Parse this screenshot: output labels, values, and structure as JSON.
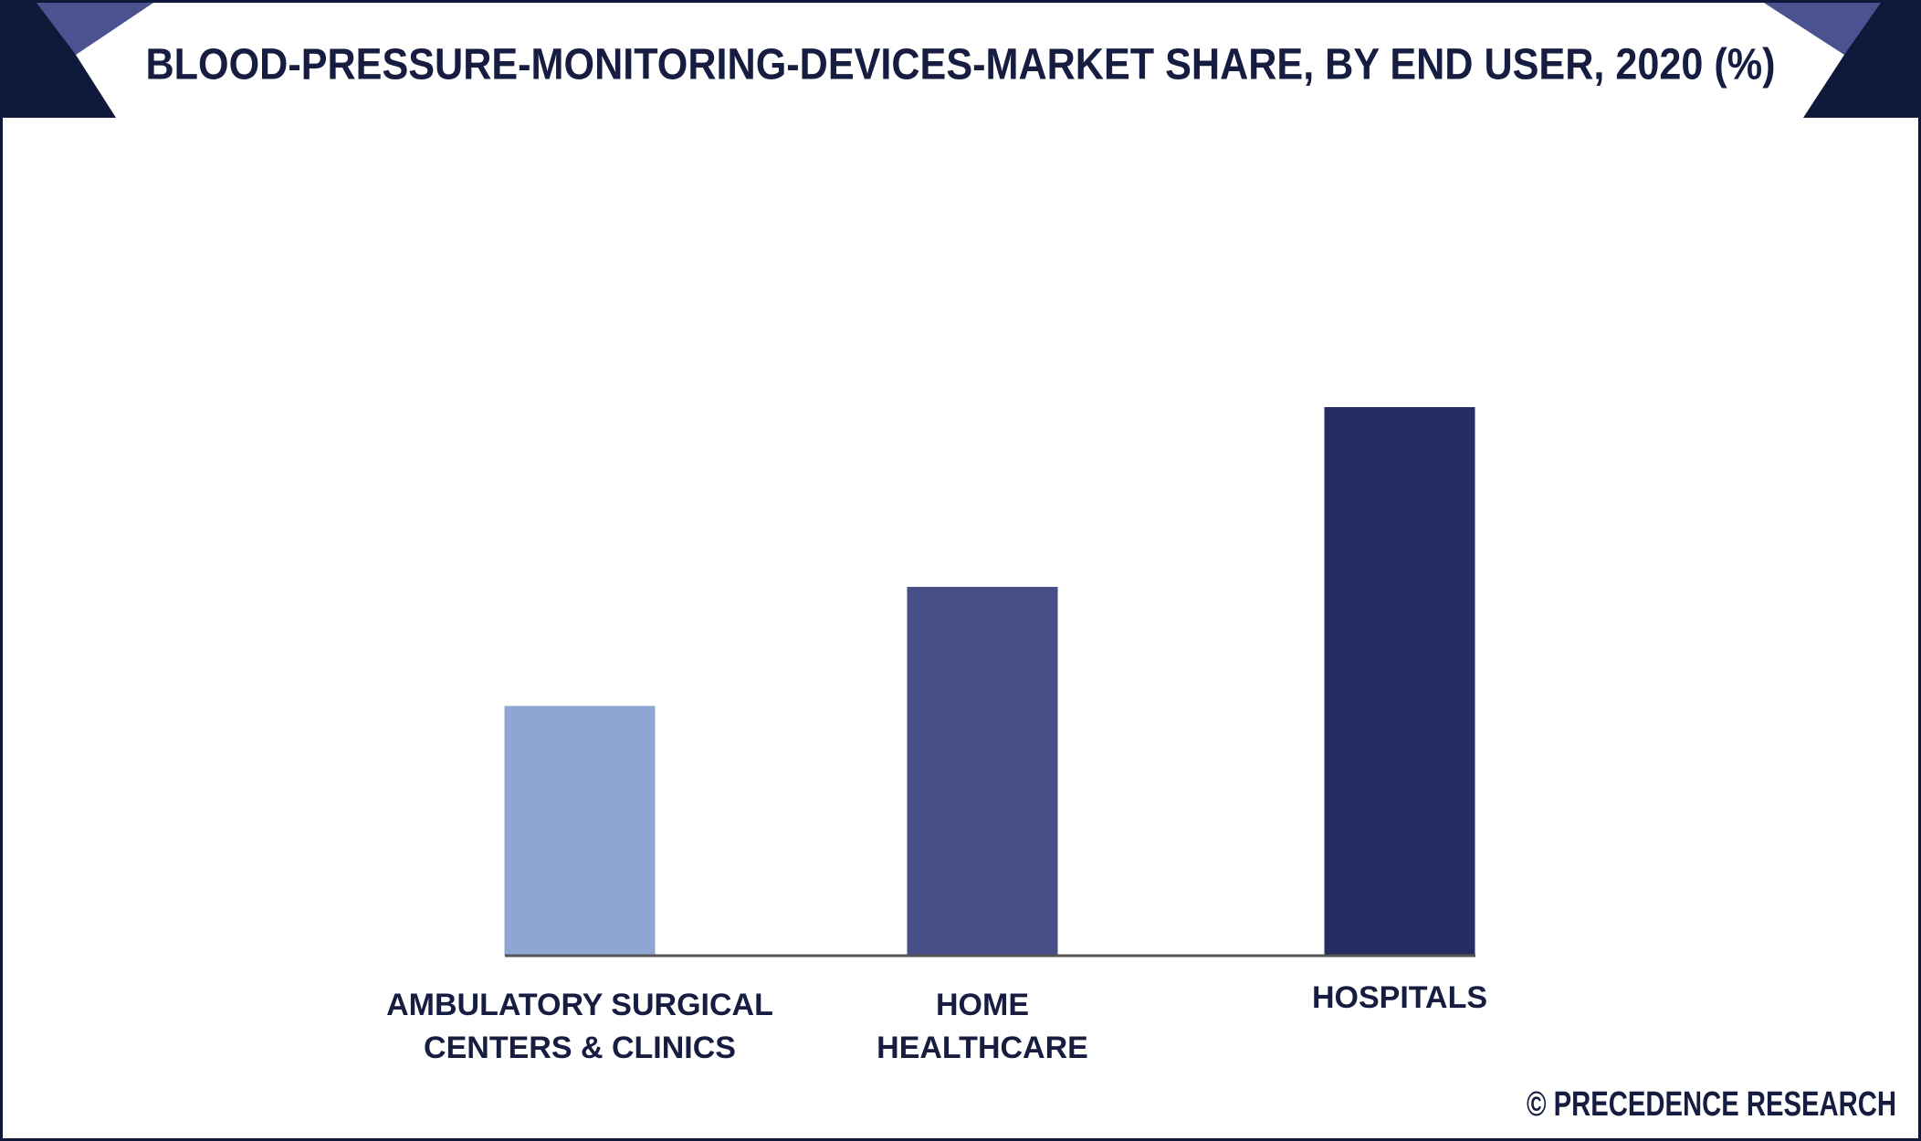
{
  "chart_data": {
    "type": "bar",
    "title": "BLOOD-PRESSURE-MONITORING-DEVICES-MARKET SHARE, BY END USER, 2020 (%)",
    "categories": [
      [
        "AMBULATORY SURGICAL",
        "CENTERS & CLINICS"
      ],
      [
        "HOME",
        "HEALTHCARE"
      ],
      [
        "HOSPITALS"
      ]
    ],
    "values": [
      21.4,
      31.6,
      47.0
    ],
    "colors": [
      "#8fa6d4",
      "#474f88",
      "#252d63"
    ],
    "source": "© PRECEDENCE RESEARCH"
  }
}
